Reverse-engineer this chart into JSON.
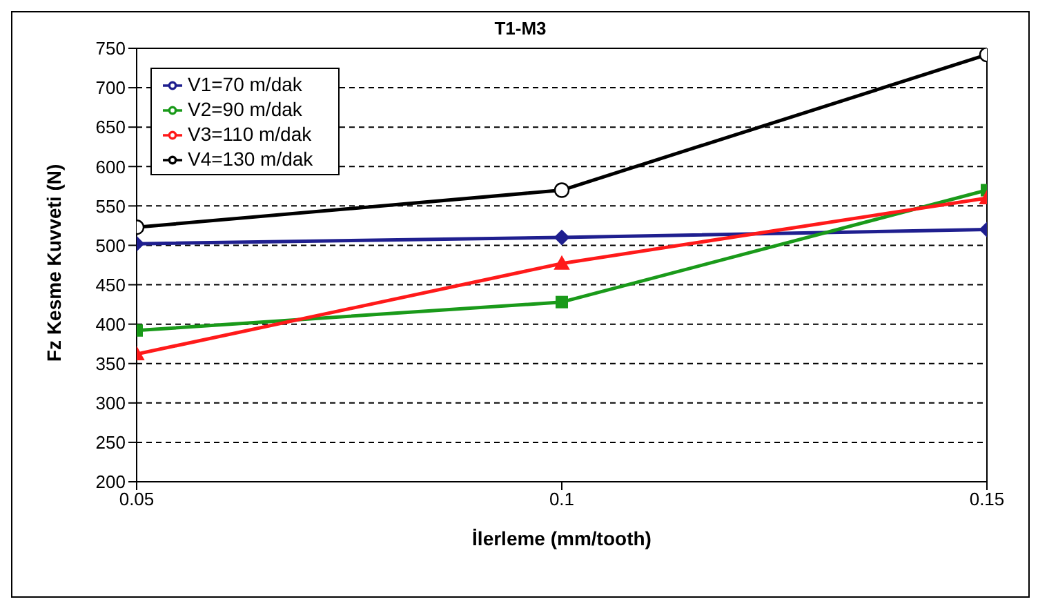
{
  "chart_data": {
    "type": "line",
    "title": "T1-M3",
    "xlabel": "İlerleme (mm/tooth)",
    "ylabel": "Fz Kesme Kuvveti (N)",
    "x": [
      0.05,
      0.1,
      0.15
    ],
    "xlim": [
      0.05,
      0.15
    ],
    "xticks": [
      0.05,
      0.1,
      0.15
    ],
    "ylim": [
      200,
      750
    ],
    "yticks": [
      200,
      250,
      300,
      350,
      400,
      450,
      500,
      550,
      600,
      650,
      700,
      750
    ],
    "grid": "y",
    "legend": "top left",
    "line_style": "solid",
    "series": [
      {
        "name": "V1=70 m/dak",
        "color": "#1f1f8f",
        "marker": "diamond",
        "values": [
          502,
          510,
          520
        ]
      },
      {
        "name": "V2=90 m/dak",
        "color": "#1a9a1a",
        "marker": "square",
        "values": [
          392,
          428,
          570
        ]
      },
      {
        "name": "V3=110 m/dak",
        "color": "#ff1a1a",
        "marker": "triangle",
        "values": [
          362,
          477,
          560
        ]
      },
      {
        "name": "V4=130 m/dak",
        "color": "#000000",
        "marker": "circle",
        "values": [
          523,
          570,
          742
        ]
      }
    ]
  }
}
